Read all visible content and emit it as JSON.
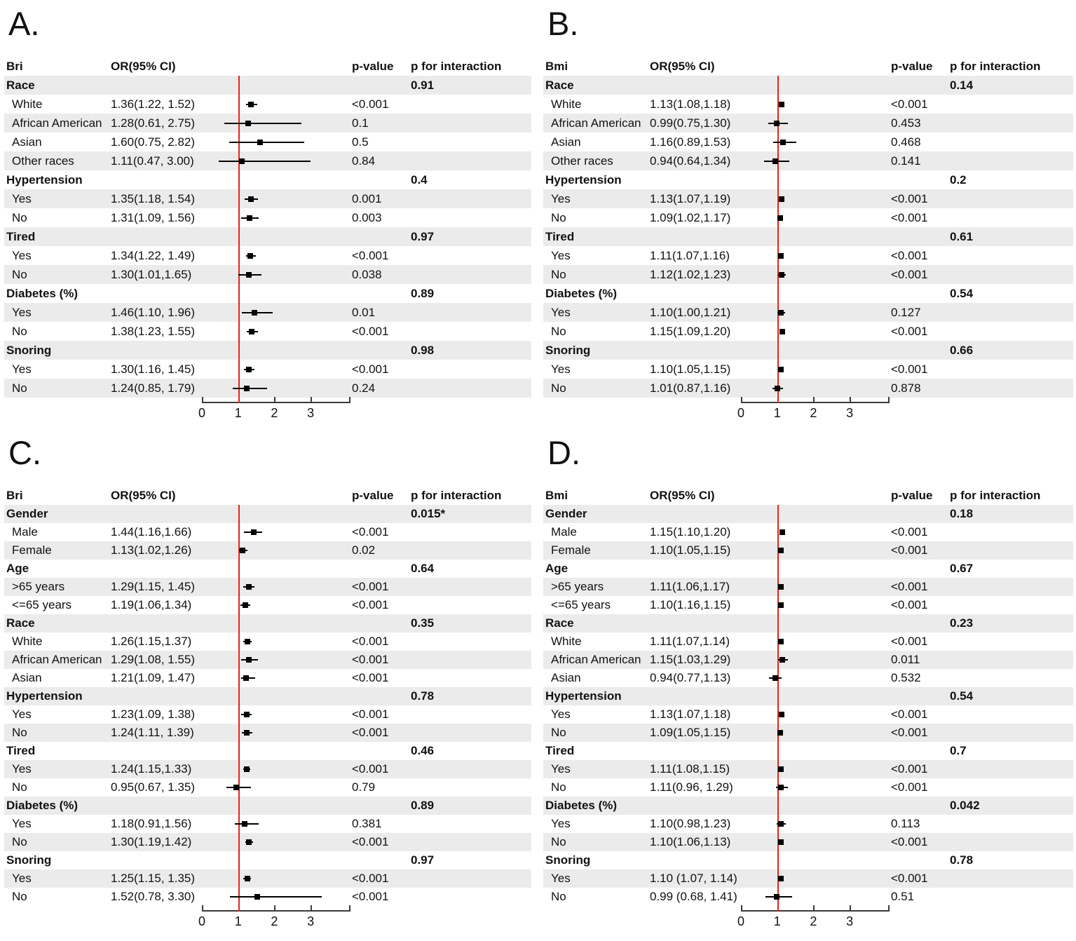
{
  "colors": {
    "stripe": "#ebebeb",
    "refline": "#e1261d",
    "marker": "#000000",
    "axis": "#3a3a3a",
    "text": "#111111"
  },
  "chart_data": [
    {
      "type": "forest",
      "panel_label": "A.",
      "columns": {
        "label": "Bri",
        "or": "OR(95% CI)",
        "pvalue": "p-value",
        "pinteraction": "p for interaction"
      },
      "axis": {
        "min": 0,
        "max": 4.1,
        "ticks": [
          0,
          1,
          2,
          3
        ],
        "refline": 1
      },
      "rows": [
        {
          "kind": "group",
          "label": "Race",
          "p_interaction": "0.91"
        },
        {
          "kind": "item",
          "label": "White",
          "or_text": "1.36(1.22, 1.52)",
          "or": 1.36,
          "ci_low": 1.22,
          "ci_high": 1.52,
          "p_value": "<0.001"
        },
        {
          "kind": "item",
          "label": "African American",
          "or_text": "1.28(0.61, 2.75)",
          "or": 1.28,
          "ci_low": 0.61,
          "ci_high": 2.75,
          "p_value": "0.1"
        },
        {
          "kind": "item",
          "label": "Asian",
          "or_text": "1.60(0.75, 2.82)",
          "or": 1.6,
          "ci_low": 0.75,
          "ci_high": 2.82,
          "p_value": "0.5"
        },
        {
          "kind": "item",
          "label": "Other races",
          "or_text": "1.11(0.47, 3.00)",
          "or": 1.11,
          "ci_low": 0.47,
          "ci_high": 3.0,
          "p_value": "0.84"
        },
        {
          "kind": "group",
          "label": "Hypertension",
          "p_interaction": "0.4"
        },
        {
          "kind": "item",
          "label": "Yes",
          "or_text": "1.35(1.18, 1.54)",
          "or": 1.35,
          "ci_low": 1.18,
          "ci_high": 1.54,
          "p_value": "0.001"
        },
        {
          "kind": "item",
          "label": "No",
          "or_text": "1.31(1.09, 1.56)",
          "or": 1.31,
          "ci_low": 1.09,
          "ci_high": 1.56,
          "p_value": "0.003"
        },
        {
          "kind": "group",
          "label": "Tired",
          "p_interaction": "0.97"
        },
        {
          "kind": "item",
          "label": "Yes",
          "or_text": "1.34(1.22, 1.49)",
          "or": 1.34,
          "ci_low": 1.22,
          "ci_high": 1.49,
          "p_value": "<0.001"
        },
        {
          "kind": "item",
          "label": "No",
          "or_text": "1.30(1.01,1.65)",
          "or": 1.3,
          "ci_low": 1.01,
          "ci_high": 1.65,
          "p_value": "0.038"
        },
        {
          "kind": "group",
          "label": "Diabetes (%)",
          "p_interaction": "0.89"
        },
        {
          "kind": "item",
          "label": "Yes",
          "or_text": "1.46(1.10, 1.96)",
          "or": 1.46,
          "ci_low": 1.1,
          "ci_high": 1.96,
          "p_value": "0.01"
        },
        {
          "kind": "item",
          "label": "No",
          "or_text": "1.38(1.23, 1.55)",
          "or": 1.38,
          "ci_low": 1.23,
          "ci_high": 1.55,
          "p_value": "<0.001"
        },
        {
          "kind": "group",
          "label": "Snoring",
          "p_interaction": "0.98"
        },
        {
          "kind": "item",
          "label": "Yes",
          "or_text": "1.30(1.16, 1.45)",
          "or": 1.3,
          "ci_low": 1.16,
          "ci_high": 1.45,
          "p_value": "<0.001"
        },
        {
          "kind": "item",
          "label": "No",
          "or_text": "1.24(0.85, 1.79)",
          "or": 1.24,
          "ci_low": 0.85,
          "ci_high": 1.79,
          "p_value": "0.24"
        }
      ]
    },
    {
      "type": "forest",
      "panel_label": "B.",
      "columns": {
        "label": "Bmi",
        "or": "OR(95% CI)",
        "pvalue": "p-value",
        "pinteraction": "p for interaction"
      },
      "axis": {
        "min": 0,
        "max": 4.1,
        "ticks": [
          0,
          1,
          2,
          3
        ],
        "refline": 1
      },
      "rows": [
        {
          "kind": "group",
          "label": "Race",
          "p_interaction": "0.14"
        },
        {
          "kind": "item",
          "label": "White",
          "or_text": "1.13(1.08,1.18)",
          "or": 1.13,
          "ci_low": 1.08,
          "ci_high": 1.18,
          "p_value": "<0.001"
        },
        {
          "kind": "item",
          "label": "African American",
          "or_text": "0.99(0.75,1.30)",
          "or": 0.99,
          "ci_low": 0.75,
          "ci_high": 1.3,
          "p_value": "0.453"
        },
        {
          "kind": "item",
          "label": "Asian",
          "or_text": "1.16(0.89,1.53)",
          "or": 1.16,
          "ci_low": 0.89,
          "ci_high": 1.53,
          "p_value": "0.468"
        },
        {
          "kind": "item",
          "label": "Other races",
          "or_text": "0.94(0.64,1.34)",
          "or": 0.94,
          "ci_low": 0.64,
          "ci_high": 1.34,
          "p_value": "0.141"
        },
        {
          "kind": "group",
          "label": "Hypertension",
          "p_interaction": "0.2"
        },
        {
          "kind": "item",
          "label": "Yes",
          "or_text": "1.13(1.07,1.19)",
          "or": 1.13,
          "ci_low": 1.07,
          "ci_high": 1.19,
          "p_value": "<0.001"
        },
        {
          "kind": "item",
          "label": "No",
          "or_text": "1.09(1.02,1.17)",
          "or": 1.09,
          "ci_low": 1.02,
          "ci_high": 1.17,
          "p_value": "<0.001"
        },
        {
          "kind": "group",
          "label": "Tired",
          "p_interaction": "0.61"
        },
        {
          "kind": "item",
          "label": "Yes",
          "or_text": "1.11(1.07,1.16)",
          "or": 1.11,
          "ci_low": 1.07,
          "ci_high": 1.16,
          "p_value": "<0.001"
        },
        {
          "kind": "item",
          "label": "No",
          "or_text": "1.12(1.02,1.23)",
          "or": 1.12,
          "ci_low": 1.02,
          "ci_high": 1.23,
          "p_value": "<0.001"
        },
        {
          "kind": "group",
          "label": "Diabetes (%)",
          "p_interaction": "0.54"
        },
        {
          "kind": "item",
          "label": "Yes",
          "or_text": "1.10(1.00,1.21)",
          "or": 1.1,
          "ci_low": 1.0,
          "ci_high": 1.21,
          "p_value": "0.127"
        },
        {
          "kind": "item",
          "label": "No",
          "or_text": "1.15(1.09,1.20)",
          "or": 1.15,
          "ci_low": 1.09,
          "ci_high": 1.2,
          "p_value": "<0.001"
        },
        {
          "kind": "group",
          "label": "Snoring",
          "p_interaction": "0.66"
        },
        {
          "kind": "item",
          "label": "Yes",
          "or_text": "1.10(1.05,1.15)",
          "or": 1.1,
          "ci_low": 1.05,
          "ci_high": 1.15,
          "p_value": "<0.001"
        },
        {
          "kind": "item",
          "label": "No",
          "or_text": "1.01(0.87,1.16)",
          "or": 1.01,
          "ci_low": 0.87,
          "ci_high": 1.16,
          "p_value": "0.878"
        }
      ]
    },
    {
      "type": "forest",
      "panel_label": "C.",
      "columns": {
        "label": "Bri",
        "or": "OR(95% CI)",
        "pvalue": "p-value",
        "pinteraction": "p for interaction"
      },
      "axis": {
        "min": 0,
        "max": 4.1,
        "ticks": [
          0,
          1,
          2,
          3
        ],
        "refline": 1
      },
      "rows": [
        {
          "kind": "group",
          "label": "Gender",
          "p_interaction": "0.015*"
        },
        {
          "kind": "item",
          "label": "Male",
          "or_text": "1.44(1.16,1.66)",
          "or": 1.44,
          "ci_low": 1.16,
          "ci_high": 1.66,
          "p_value": "<0.001"
        },
        {
          "kind": "item",
          "label": "Female",
          "or_text": "1.13(1.02,1.26)",
          "or": 1.13,
          "ci_low": 1.02,
          "ci_high": 1.26,
          "p_value": "0.02"
        },
        {
          "kind": "group",
          "label": "Age",
          "p_interaction": "0.64"
        },
        {
          "kind": "item",
          "label": ">65 years",
          "or_text": "1.29(1.15, 1.45)",
          "or": 1.29,
          "ci_low": 1.15,
          "ci_high": 1.45,
          "p_value": "<0.001"
        },
        {
          "kind": "item",
          "label": "<=65 years",
          "or_text": "1.19(1.06,1.34)",
          "or": 1.19,
          "ci_low": 1.06,
          "ci_high": 1.34,
          "p_value": "<0.001"
        },
        {
          "kind": "group",
          "label": "Race",
          "p_interaction": "0.35"
        },
        {
          "kind": "item",
          "label": "White",
          "or_text": "1.26(1.15,1.37)",
          "or": 1.26,
          "ci_low": 1.15,
          "ci_high": 1.37,
          "p_value": "<0.001"
        },
        {
          "kind": "item",
          "label": "African American",
          "or_text": "1.29(1.08, 1.55)",
          "or": 1.29,
          "ci_low": 1.08,
          "ci_high": 1.55,
          "p_value": "<0.001"
        },
        {
          "kind": "item",
          "label": "Asian",
          "or_text": "1.21(1.09, 1.47)",
          "or": 1.21,
          "ci_low": 1.09,
          "ci_high": 1.47,
          "p_value": "<0.001"
        },
        {
          "kind": "group",
          "label": "Hypertension",
          "p_interaction": "0.78"
        },
        {
          "kind": "item",
          "label": "Yes",
          "or_text": "1.23(1.09, 1.38)",
          "or": 1.23,
          "ci_low": 1.09,
          "ci_high": 1.38,
          "p_value": "<0.001"
        },
        {
          "kind": "item",
          "label": "No",
          "or_text": "1.24(1.11, 1.39)",
          "or": 1.24,
          "ci_low": 1.11,
          "ci_high": 1.39,
          "p_value": "<0.001"
        },
        {
          "kind": "group",
          "label": "Tired",
          "p_interaction": "0.46"
        },
        {
          "kind": "item",
          "label": "Yes",
          "or_text": "1.24(1.15,1.33)",
          "or": 1.24,
          "ci_low": 1.15,
          "ci_high": 1.33,
          "p_value": "<0.001"
        },
        {
          "kind": "item",
          "label": "No",
          "or_text": "0.95(0.67, 1.35)",
          "or": 0.95,
          "ci_low": 0.67,
          "ci_high": 1.35,
          "p_value": "0.79"
        },
        {
          "kind": "group",
          "label": "Diabetes (%)",
          "p_interaction": "0.89"
        },
        {
          "kind": "item",
          "label": "Yes",
          "or_text": "1.18(0.91,1.56)",
          "or": 1.18,
          "ci_low": 0.91,
          "ci_high": 1.56,
          "p_value": "0.381"
        },
        {
          "kind": "item",
          "label": "No",
          "or_text": "1.30(1.19,1.42)",
          "or": 1.3,
          "ci_low": 1.19,
          "ci_high": 1.42,
          "p_value": "<0.001"
        },
        {
          "kind": "group",
          "label": "Snoring",
          "p_interaction": "0.97"
        },
        {
          "kind": "item",
          "label": "Yes",
          "or_text": "1.25(1.15, 1.35)",
          "or": 1.25,
          "ci_low": 1.15,
          "ci_high": 1.35,
          "p_value": "<0.001"
        },
        {
          "kind": "item",
          "label": "No",
          "or_text": "1.52(0.78, 3.30)",
          "or": 1.52,
          "ci_low": 0.78,
          "ci_high": 3.3,
          "p_value": "<0.001"
        }
      ]
    },
    {
      "type": "forest",
      "panel_label": "D.",
      "columns": {
        "label": "Bmi",
        "or": "OR(95% CI)",
        "pvalue": "p-value",
        "pinteraction": "p for interaction"
      },
      "axis": {
        "min": 0,
        "max": 4.1,
        "ticks": [
          0,
          1,
          2,
          3
        ],
        "refline": 1
      },
      "rows": [
        {
          "kind": "group",
          "label": "Gender",
          "p_interaction": "0.18"
        },
        {
          "kind": "item",
          "label": "Male",
          "or_text": "1.15(1.10,1.20)",
          "or": 1.15,
          "ci_low": 1.1,
          "ci_high": 1.2,
          "p_value": "<0.001"
        },
        {
          "kind": "item",
          "label": "Female",
          "or_text": "1.10(1.05,1.15)",
          "or": 1.1,
          "ci_low": 1.05,
          "ci_high": 1.15,
          "p_value": "<0.001"
        },
        {
          "kind": "group",
          "label": "Age",
          "p_interaction": "0.67"
        },
        {
          "kind": "item",
          "label": ">65 years",
          "or_text": "1.11(1.06,1.17)",
          "or": 1.11,
          "ci_low": 1.06,
          "ci_high": 1.17,
          "p_value": "<0.001"
        },
        {
          "kind": "item",
          "label": "<=65 years",
          "or_text": "1.10(1.16,1.15)",
          "or": 1.1,
          "ci_low": 1.16,
          "ci_high": 1.15,
          "p_value": "<0.001"
        },
        {
          "kind": "group",
          "label": "Race",
          "p_interaction": "0.23"
        },
        {
          "kind": "item",
          "label": "White",
          "or_text": "1.11(1.07,1.14)",
          "or": 1.11,
          "ci_low": 1.07,
          "ci_high": 1.14,
          "p_value": "<0.001"
        },
        {
          "kind": "item",
          "label": "African American",
          "or_text": "1.15(1.03,1.29)",
          "or": 1.15,
          "ci_low": 1.03,
          "ci_high": 1.29,
          "p_value": "0.011"
        },
        {
          "kind": "item",
          "label": "Asian",
          "or_text": "0.94(0.77,1.13)",
          "or": 0.94,
          "ci_low": 0.77,
          "ci_high": 1.13,
          "p_value": "0.532"
        },
        {
          "kind": "group",
          "label": "Hypertension",
          "p_interaction": "0.54"
        },
        {
          "kind": "item",
          "label": "Yes",
          "or_text": "1.13(1.07,1.18)",
          "or": 1.13,
          "ci_low": 1.07,
          "ci_high": 1.18,
          "p_value": "<0.001"
        },
        {
          "kind": "item",
          "label": "No",
          "or_text": "1.09(1.05,1.15)",
          "or": 1.09,
          "ci_low": 1.05,
          "ci_high": 1.15,
          "p_value": "<0.001"
        },
        {
          "kind": "group",
          "label": "Tired",
          "p_interaction": "0.7"
        },
        {
          "kind": "item",
          "label": "Yes",
          "or_text": "1.11(1.08,1.15)",
          "or": 1.11,
          "ci_low": 1.08,
          "ci_high": 1.15,
          "p_value": "<0.001"
        },
        {
          "kind": "item",
          "label": "No",
          "or_text": "1.11(0.96, 1.29)",
          "or": 1.11,
          "ci_low": 0.96,
          "ci_high": 1.29,
          "p_value": "<0.001"
        },
        {
          "kind": "group",
          "label": "Diabetes (%)",
          "p_interaction": "0.042"
        },
        {
          "kind": "item",
          "label": "Yes",
          "or_text": "1.10(0.98,1.23)",
          "or": 1.1,
          "ci_low": 0.98,
          "ci_high": 1.23,
          "p_value": "0.113"
        },
        {
          "kind": "item",
          "label": "No",
          "or_text": "1.10(1.06,1.13)",
          "or": 1.1,
          "ci_low": 1.06,
          "ci_high": 1.13,
          "p_value": "<0.001"
        },
        {
          "kind": "group",
          "label": "Snoring",
          "p_interaction": "0.78"
        },
        {
          "kind": "item",
          "label": "Yes",
          "or_text": "1.10 (1.07, 1.14)",
          "or": 1.1,
          "ci_low": 1.07,
          "ci_high": 1.14,
          "p_value": "<0.001"
        },
        {
          "kind": "item",
          "label": "No",
          "or_text": "0.99 (0.68, 1.41)",
          "or": 0.99,
          "ci_low": 0.68,
          "ci_high": 1.41,
          "p_value": "0.51"
        }
      ]
    }
  ]
}
